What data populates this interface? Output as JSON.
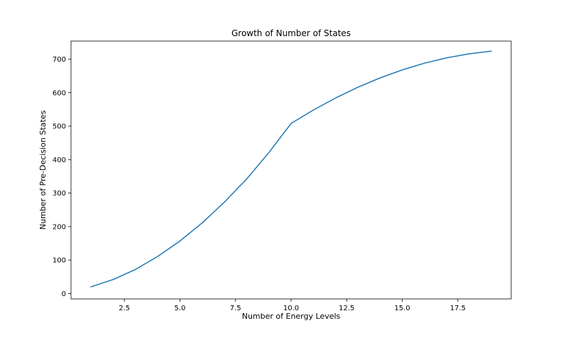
{
  "chart_data": {
    "type": "line",
    "title": "Growth of Number of States",
    "xlabel": "Number of Energy Levels",
    "ylabel": "Number of Pre-Decision States",
    "xlim": [
      0.1,
      19.9
    ],
    "ylim": [
      -16,
      754
    ],
    "xticks": [
      2.5,
      5.0,
      7.5,
      10.0,
      12.5,
      15.0,
      17.5
    ],
    "xtick_labels": [
      "2.5",
      "5.0",
      "7.5",
      "10.0",
      "12.5",
      "15.0",
      "17.5"
    ],
    "yticks": [
      0,
      100,
      200,
      300,
      400,
      500,
      600,
      700
    ],
    "ytick_labels": [
      "0",
      "100",
      "200",
      "300",
      "400",
      "500",
      "600",
      "700"
    ],
    "grid": false,
    "series": [
      {
        "color": "#1f77b4",
        "x": [
          1,
          2,
          3,
          4,
          5,
          6,
          7,
          8,
          9,
          10,
          11,
          12,
          13,
          14,
          15,
          16,
          17,
          18,
          19
        ],
        "values": [
          20,
          42,
          72,
          111,
          157,
          211,
          273,
          342,
          421,
          508,
          548,
          584,
          616,
          644,
          668,
          688,
          704,
          716,
          724
        ]
      }
    ]
  }
}
